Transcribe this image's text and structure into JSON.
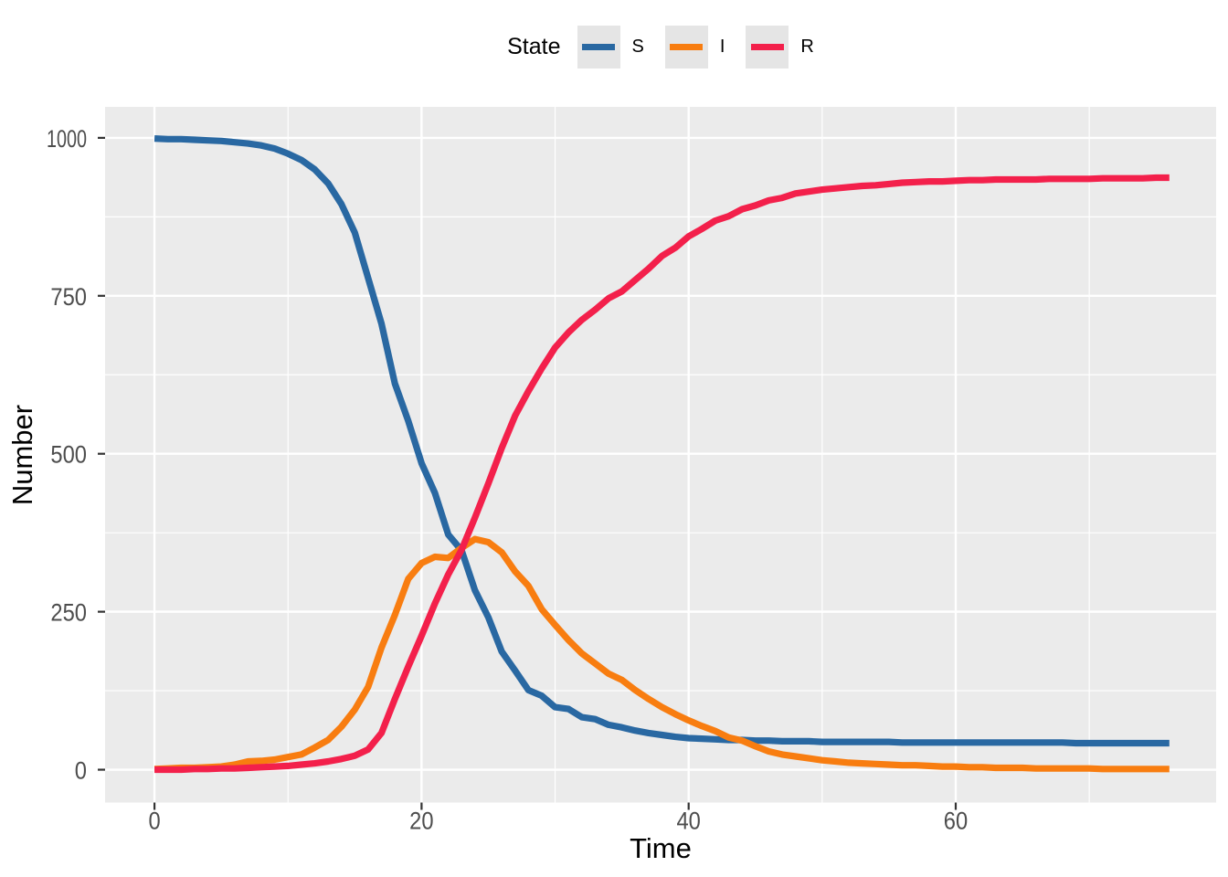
{
  "figure": {
    "bg": "#FFFFFF"
  },
  "panel": {
    "bg": "#EBEBEB",
    "grid_color": "#FFFFFF",
    "tick_color": "#333333",
    "tick_label_color": "#4D4D4D",
    "axis_title_color": "#000000"
  },
  "chart_data": {
    "type": "line",
    "title": "",
    "xlabel": "Time",
    "ylabel": "Number",
    "xlim": [
      -3.7,
      79.5
    ],
    "ylim": [
      -52,
      1049
    ],
    "x_ticks": [
      0,
      20,
      40,
      60
    ],
    "x_tick_labels": [
      "0",
      "20",
      "40",
      "60"
    ],
    "x_minor": [
      10,
      30,
      50,
      70
    ],
    "y_ticks": [
      0,
      250,
      500,
      750,
      1000
    ],
    "y_tick_labels": [
      "0",
      "250",
      "500",
      "750",
      "1000"
    ],
    "y_minor": [
      125,
      375,
      625,
      875
    ],
    "legend": {
      "title": "State",
      "entries": [
        {
          "label": "S",
          "color": "#2968A2"
        },
        {
          "label": "I",
          "color": "#F87D10"
        },
        {
          "label": "R",
          "color": "#F3204B"
        }
      ]
    },
    "x": [
      0,
      1,
      2,
      3,
      4,
      5,
      6,
      7,
      8,
      9,
      10,
      11,
      12,
      13,
      14,
      15,
      16,
      17,
      18,
      19,
      20,
      21,
      22,
      23,
      24,
      25,
      26,
      27,
      28,
      29,
      30,
      31,
      32,
      33,
      34,
      35,
      36,
      37,
      38,
      39,
      40,
      41,
      42,
      43,
      44,
      45,
      46,
      47,
      48,
      49,
      50,
      51,
      52,
      53,
      54,
      55,
      56,
      57,
      58,
      59,
      60,
      61,
      62,
      63,
      64,
      65,
      66,
      67,
      68,
      69,
      70,
      71,
      72,
      73,
      74,
      75,
      76
    ],
    "series": [
      {
        "name": "S",
        "color": "#2968A2",
        "y": [
          999,
          998,
          998,
          997,
          996,
          995,
          993,
          991,
          988,
          983,
          975,
          965,
          950,
          928,
          895,
          850,
          778,
          706,
          611,
          552,
          485,
          438,
          372,
          347,
          284,
          241,
          187,
          157,
          126,
          117,
          99,
          96,
          83,
          80,
          71,
          67,
          62,
          58,
          55,
          52,
          50,
          49,
          48,
          47,
          47,
          46,
          46,
          45,
          45,
          45,
          44,
          44,
          44,
          44,
          44,
          44,
          43,
          43,
          43,
          43,
          43,
          43,
          43,
          43,
          43,
          43,
          43,
          43,
          43,
          42,
          42,
          42,
          42,
          42,
          42,
          42,
          42
        ]
      },
      {
        "name": "I",
        "color": "#F87D10",
        "y": [
          1,
          2,
          3,
          3,
          4,
          5,
          8,
          13,
          14,
          16,
          20,
          24,
          35,
          47,
          68,
          95,
          131,
          193,
          245,
          302,
          327,
          337,
          335,
          351,
          365,
          360,
          344,
          314,
          291,
          254,
          229,
          205,
          184,
          168,
          152,
          142,
          126,
          112,
          99,
          88,
          78,
          69,
          61,
          51,
          46,
          37,
          29,
          24,
          21,
          18,
          15,
          13,
          11,
          10,
          9,
          8,
          7,
          7,
          6,
          5,
          5,
          4,
          4,
          3,
          3,
          3,
          2,
          2,
          2,
          2,
          2,
          1,
          1,
          1,
          1,
          1,
          1
        ]
      },
      {
        "name": "R",
        "color": "#F3204B",
        "y": [
          0,
          0,
          0,
          1,
          1,
          2,
          2,
          3,
          4,
          5,
          6,
          8,
          10,
          13,
          17,
          22,
          32,
          58,
          112,
          163,
          212,
          263,
          309,
          348,
          399,
          453,
          509,
          560,
          599,
          635,
          668,
          692,
          712,
          728,
          746,
          757,
          775,
          793,
          813,
          826,
          844,
          856,
          869,
          876,
          887,
          893,
          901,
          905,
          912,
          915,
          918,
          920,
          922,
          924,
          925,
          927,
          929,
          930,
          931,
          931,
          932,
          933,
          933,
          934,
          934,
          934,
          934,
          935,
          935,
          935,
          935,
          936,
          936,
          936,
          936,
          937,
          937
        ]
      }
    ]
  }
}
